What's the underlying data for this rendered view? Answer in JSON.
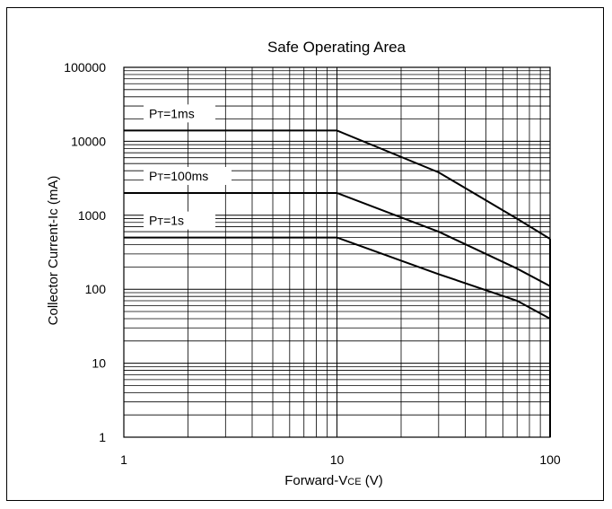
{
  "chart_data": {
    "type": "line",
    "title": "Safe Operating Area",
    "xlabel": {
      "main": "Forward-V",
      "sub": "CE",
      "unit": " (V)"
    },
    "ylabel": "Collector Current-Ic (mA)",
    "xscale": "log",
    "yscale": "log",
    "xlim": [
      1,
      100
    ],
    "ylim": [
      1,
      100000
    ],
    "grid": true,
    "x_ticks": [
      "1",
      "10",
      "100"
    ],
    "y_ticks": [
      "1",
      "10",
      "100",
      "1000",
      "10000",
      "100000"
    ],
    "series": [
      {
        "name": "PT=1ms",
        "label_main": "P",
        "label_sub": "T",
        "label_rest": "=1ms",
        "points": [
          [
            1,
            14000
          ],
          [
            10,
            14000
          ],
          [
            30,
            3800
          ],
          [
            70,
            900
          ],
          [
            100,
            480
          ]
        ]
      },
      {
        "name": "PT=100ms",
        "label_main": "P",
        "label_sub": "T",
        "label_rest": "=100ms",
        "points": [
          [
            1,
            2000
          ],
          [
            10,
            2000
          ],
          [
            30,
            600
          ],
          [
            70,
            190
          ],
          [
            100,
            110
          ]
        ]
      },
      {
        "name": "PT=1s",
        "label_main": "P",
        "label_sub": "T",
        "label_rest": "=1s",
        "points": [
          [
            1,
            500
          ],
          [
            10,
            500
          ],
          [
            30,
            160
          ],
          [
            70,
            70
          ],
          [
            100,
            40
          ]
        ]
      }
    ],
    "line_color": "#000000"
  }
}
